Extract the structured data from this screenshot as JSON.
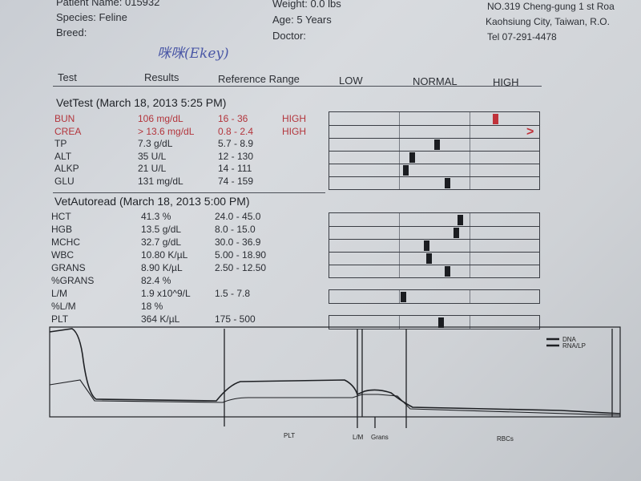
{
  "header": {
    "patient_name": "Patient Name: 015932",
    "species": "Species: Feline",
    "breed": "Breed:",
    "weight": "Weight: 0.0 lbs",
    "age": "Age: 5 Years",
    "doctor": "Doctor:",
    "address1": "NO.319 Cheng-gung 1 st Roa",
    "address2": "Kaohsiung City, Taiwan, R.O.",
    "tel": "Tel 07-291-4478",
    "handwriting": "咪咪(Ekey)"
  },
  "columns": {
    "test": "Test",
    "results": "Results",
    "reference": "Reference Range",
    "low": "LOW",
    "normal": "NORMAL",
    "high": "HIGH"
  },
  "vettest": {
    "title": "VetTest (March 18, 2013 5:25 PM)",
    "rows": [
      {
        "test": "BUN",
        "result": "106 mg/dL",
        "range": "16 - 36",
        "flag": "HIGH",
        "level": 0.78,
        "abnormal": true
      },
      {
        "test": "CREA",
        "result": "> 13.6 mg/dL",
        "range": "0.8 - 2.4",
        "flag": "HIGH",
        "level": 1.0,
        "abnormal": true
      },
      {
        "test": "TP",
        "result": "7.3 g/dL",
        "range": "5.7 - 8.9",
        "flag": "",
        "level": 0.5,
        "abnormal": false
      },
      {
        "test": "ALT",
        "result": "35 U/L",
        "range": "12 - 130",
        "flag": "",
        "level": 0.38,
        "abnormal": false
      },
      {
        "test": "ALKP",
        "result": "21 U/L",
        "range": "14 - 111",
        "flag": "",
        "level": 0.35,
        "abnormal": false
      },
      {
        "test": "GLU",
        "result": "131 mg/dL",
        "range": "74 - 159",
        "flag": "",
        "level": 0.55,
        "abnormal": false
      }
    ]
  },
  "vetautoread": {
    "title": "VetAutoread (March 18, 2013 5:00 PM)",
    "rows": [
      {
        "test": "HCT",
        "result": "41.3 %",
        "range": "24.0 - 45.0",
        "bar": true,
        "level": 0.61
      },
      {
        "test": "HGB",
        "result": "13.5 g/dL",
        "range": "8.0 - 15.0",
        "bar": true,
        "level": 0.59
      },
      {
        "test": "MCHC",
        "result": "32.7 g/dL",
        "range": "30.0 - 36.9",
        "bar": true,
        "level": 0.45
      },
      {
        "test": "WBC",
        "result": "10.80 K/µL",
        "range": "5.00 - 18.90",
        "bar": true,
        "level": 0.46
      },
      {
        "test": "GRANS",
        "result": "8.90 K/µL",
        "range": "2.50 - 12.50",
        "bar": true,
        "level": 0.55
      },
      {
        "test": "%GRANS",
        "result": "82.4 %",
        "range": "",
        "bar": false
      },
      {
        "test": "L/M",
        "result": "1.9 x10^9/L",
        "range": "1.5 - 7.8",
        "bar": true,
        "level": 0.34
      },
      {
        "test": "%L/M",
        "result": "18 %",
        "range": "",
        "bar": false
      },
      {
        "test": "PLT",
        "result": "364 K/µL",
        "range": "175 - 500",
        "bar": true,
        "level": 0.52
      }
    ]
  },
  "graph": {
    "legend": [
      "DNA",
      "RNA/LP"
    ],
    "labels": [
      "PLT",
      "L/M",
      "Grans",
      "RBCs"
    ]
  }
}
